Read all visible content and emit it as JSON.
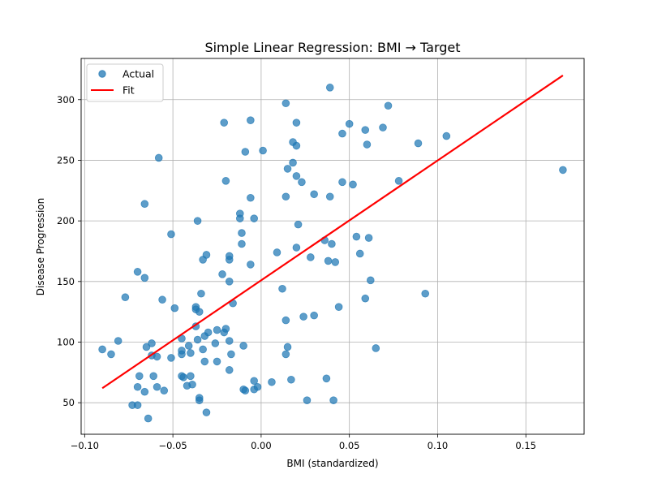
{
  "chart_data": {
    "type": "scatter",
    "title": "Simple Linear Regression: BMI → Target",
    "xlabel": "BMI (standardized)",
    "ylabel": "Disease Progression",
    "xlim": [
      -0.102,
      0.183
    ],
    "ylim": [
      24,
      334
    ],
    "x_ticks": [
      -0.1,
      -0.05,
      0.0,
      0.05,
      0.1,
      0.15
    ],
    "x_tick_labels": [
      "−0.10",
      "−0.05",
      "0.00",
      "0.05",
      "0.10",
      "0.15"
    ],
    "y_ticks": [
      50,
      100,
      150,
      200,
      250,
      300
    ],
    "y_tick_labels": [
      "50",
      "100",
      "150",
      "200",
      "250",
      "300"
    ],
    "grid": true,
    "legend_position": "top-left",
    "series": [
      {
        "name": "Actual",
        "kind": "scatter",
        "color": "#1f77b4",
        "points": [
          [
            -0.09,
            94
          ],
          [
            -0.085,
            90
          ],
          [
            -0.081,
            101
          ],
          [
            -0.077,
            137
          ],
          [
            -0.073,
            48
          ],
          [
            -0.07,
            158
          ],
          [
            -0.07,
            63
          ],
          [
            -0.069,
            72
          ],
          [
            -0.07,
            48
          ],
          [
            -0.066,
            214
          ],
          [
            -0.066,
            153
          ],
          [
            -0.066,
            59
          ],
          [
            -0.065,
            96
          ],
          [
            -0.064,
            37
          ],
          [
            -0.062,
            89
          ],
          [
            -0.062,
            99
          ],
          [
            -0.061,
            72
          ],
          [
            -0.059,
            88
          ],
          [
            -0.058,
            252
          ],
          [
            -0.059,
            63
          ],
          [
            -0.056,
            135
          ],
          [
            -0.055,
            60
          ],
          [
            -0.051,
            189
          ],
          [
            -0.051,
            87
          ],
          [
            -0.049,
            128
          ],
          [
            -0.045,
            103
          ],
          [
            -0.045,
            93
          ],
          [
            -0.045,
            90
          ],
          [
            -0.045,
            72
          ],
          [
            -0.042,
            64
          ],
          [
            -0.044,
            71
          ],
          [
            -0.041,
            97
          ],
          [
            -0.04,
            72
          ],
          [
            -0.04,
            91
          ],
          [
            -0.039,
            65
          ],
          [
            -0.037,
            129
          ],
          [
            -0.037,
            127
          ],
          [
            -0.037,
            113
          ],
          [
            -0.036,
            200
          ],
          [
            -0.035,
            125
          ],
          [
            -0.036,
            102
          ],
          [
            -0.035,
            54
          ],
          [
            -0.035,
            52
          ],
          [
            -0.034,
            140
          ],
          [
            -0.033,
            168
          ],
          [
            -0.033,
            94
          ],
          [
            -0.032,
            84
          ],
          [
            -0.032,
            105
          ],
          [
            -0.031,
            172
          ],
          [
            -0.031,
            42
          ],
          [
            -0.03,
            108
          ],
          [
            -0.026,
            99
          ],
          [
            -0.025,
            110
          ],
          [
            -0.025,
            84
          ],
          [
            -0.022,
            156
          ],
          [
            -0.021,
            281
          ],
          [
            -0.021,
            108
          ],
          [
            -0.02,
            111
          ],
          [
            -0.02,
            233
          ],
          [
            -0.018,
            171
          ],
          [
            -0.018,
            168
          ],
          [
            -0.018,
            150
          ],
          [
            -0.018,
            101
          ],
          [
            -0.018,
            77
          ],
          [
            -0.016,
            132
          ],
          [
            -0.017,
            90
          ],
          [
            -0.012,
            206
          ],
          [
            -0.012,
            202
          ],
          [
            -0.011,
            190
          ],
          [
            -0.011,
            181
          ],
          [
            -0.01,
            97
          ],
          [
            -0.01,
            61
          ],
          [
            -0.009,
            257
          ],
          [
            -0.009,
            60
          ],
          [
            -0.006,
            283
          ],
          [
            -0.006,
            219
          ],
          [
            -0.006,
            164
          ],
          [
            -0.004,
            202
          ],
          [
            -0.004,
            68
          ],
          [
            -0.004,
            61
          ],
          [
            -0.002,
            63
          ],
          [
            0.001,
            258
          ],
          [
            0.006,
            67
          ],
          [
            0.009,
            174
          ],
          [
            0.012,
            144
          ],
          [
            0.014,
            297
          ],
          [
            0.014,
            220
          ],
          [
            0.014,
            118
          ],
          [
            0.014,
            90
          ],
          [
            0.015,
            243
          ],
          [
            0.015,
            96
          ],
          [
            0.017,
            69
          ],
          [
            0.018,
            265
          ],
          [
            0.018,
            248
          ],
          [
            0.02,
            281
          ],
          [
            0.02,
            262
          ],
          [
            0.02,
            237
          ],
          [
            0.02,
            178
          ],
          [
            0.021,
            197
          ],
          [
            0.023,
            232
          ],
          [
            0.024,
            121
          ],
          [
            0.026,
            52
          ],
          [
            0.028,
            170
          ],
          [
            0.03,
            222
          ],
          [
            0.03,
            122
          ],
          [
            0.036,
            184
          ],
          [
            0.037,
            70
          ],
          [
            0.038,
            167
          ],
          [
            0.039,
            310
          ],
          [
            0.039,
            220
          ],
          [
            0.04,
            181
          ],
          [
            0.041,
            52
          ],
          [
            0.042,
            166
          ],
          [
            0.044,
            129
          ],
          [
            0.046,
            272
          ],
          [
            0.046,
            232
          ],
          [
            0.05,
            280
          ],
          [
            0.052,
            230
          ],
          [
            0.054,
            187
          ],
          [
            0.056,
            173
          ],
          [
            0.059,
            275
          ],
          [
            0.059,
            136
          ],
          [
            0.06,
            263
          ],
          [
            0.061,
            186
          ],
          [
            0.062,
            151
          ],
          [
            0.065,
            95
          ],
          [
            0.069,
            277
          ],
          [
            0.072,
            295
          ],
          [
            0.078,
            233
          ],
          [
            0.089,
            264
          ],
          [
            0.093,
            140
          ],
          [
            0.105,
            270
          ],
          [
            0.171,
            242
          ]
        ]
      },
      {
        "name": "Fit",
        "kind": "line",
        "color": "#ff0000",
        "points": [
          [
            -0.09,
            62
          ],
          [
            0.171,
            320
          ]
        ]
      }
    ]
  }
}
